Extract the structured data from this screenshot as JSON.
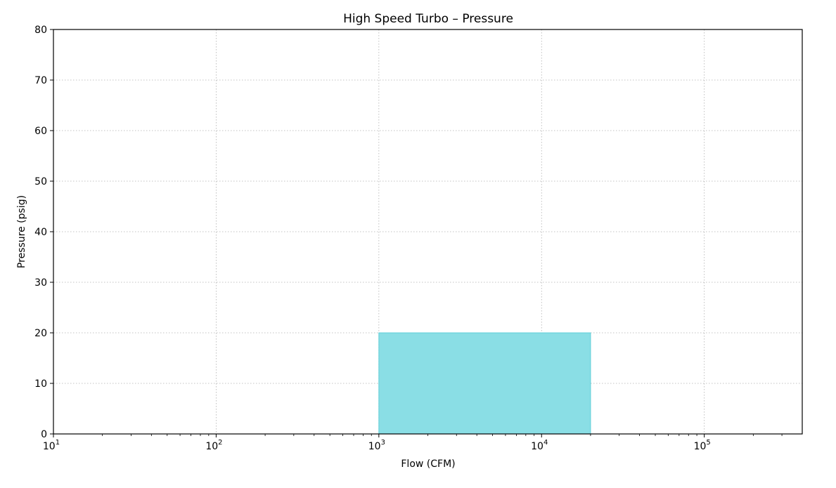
{
  "chart_data": {
    "type": "area",
    "title": "High Speed Turbo – Pressure",
    "xlabel": "Flow (CFM)",
    "ylabel": "Pressure (psig)",
    "x_scale": "log",
    "xlim": [
      10,
      400000
    ],
    "ylim": [
      0,
      80
    ],
    "grid": true,
    "x_ticks": [
      {
        "base": "10",
        "exp": "1",
        "value": 10
      },
      {
        "base": "10",
        "exp": "2",
        "value": 100
      },
      {
        "base": "10",
        "exp": "3",
        "value": 1000
      },
      {
        "base": "10",
        "exp": "4",
        "value": 10000
      },
      {
        "base": "10",
        "exp": "5",
        "value": 100000
      }
    ],
    "y_ticks": [
      {
        "label": "0",
        "value": 0
      },
      {
        "label": "10",
        "value": 10
      },
      {
        "label": "20",
        "value": 20
      },
      {
        "label": "30",
        "value": 30
      },
      {
        "label": "40",
        "value": 40
      },
      {
        "label": "50",
        "value": 50
      },
      {
        "label": "60",
        "value": 60
      },
      {
        "label": "70",
        "value": 70
      },
      {
        "label": "80",
        "value": 80
      }
    ],
    "regions": [
      {
        "x_min": 1000,
        "x_max": 20000,
        "y_min": 0,
        "y_max": 20,
        "color": "#8adee5",
        "edge_color": "#5fcfd8"
      }
    ]
  }
}
